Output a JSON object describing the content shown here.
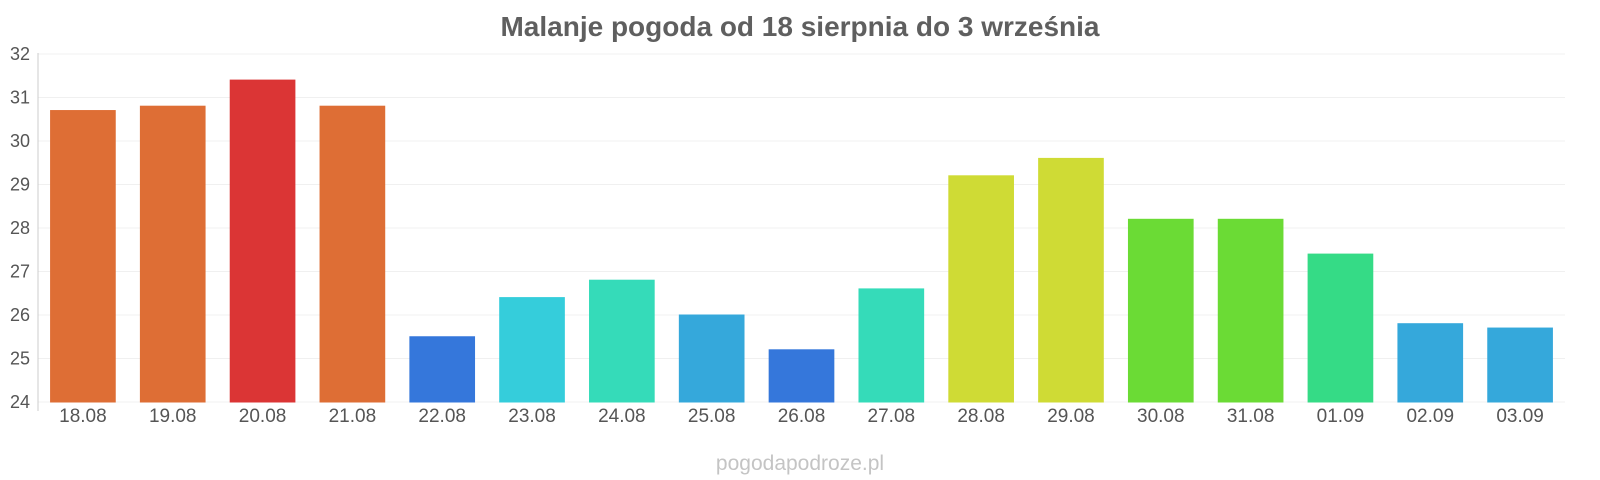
{
  "chart_data": {
    "type": "bar",
    "title": "Malanje pogoda od 18 sierpnia do 3 września",
    "xlabel": "",
    "ylabel": "",
    "ylim": [
      24,
      32
    ],
    "yticks": [
      24,
      25,
      26,
      27,
      28,
      29,
      30,
      31,
      32
    ],
    "grid": true,
    "categories": [
      "18.08",
      "19.08",
      "20.08",
      "21.08",
      "22.08",
      "23.08",
      "24.08",
      "25.08",
      "26.08",
      "27.08",
      "28.08",
      "29.08",
      "30.08",
      "31.08",
      "01.09",
      "02.09",
      "03.09"
    ],
    "values": [
      30.7,
      30.8,
      31.4,
      30.8,
      25.5,
      26.4,
      26.8,
      26.0,
      25.2,
      26.6,
      29.2,
      29.6,
      28.2,
      28.2,
      27.4,
      25.8,
      25.7
    ],
    "colors": [
      "#de6e35",
      "#de6e35",
      "#db3535",
      "#de6e35",
      "#3577db",
      "#35cddb",
      "#35dbb9",
      "#35a8db",
      "#3577db",
      "#35dbb9",
      "#cfdb35",
      "#cfdb35",
      "#6bdb35",
      "#6bdb35",
      "#35db86",
      "#35a8db",
      "#35a8db"
    ],
    "source": "pogodapodroze.pl"
  }
}
